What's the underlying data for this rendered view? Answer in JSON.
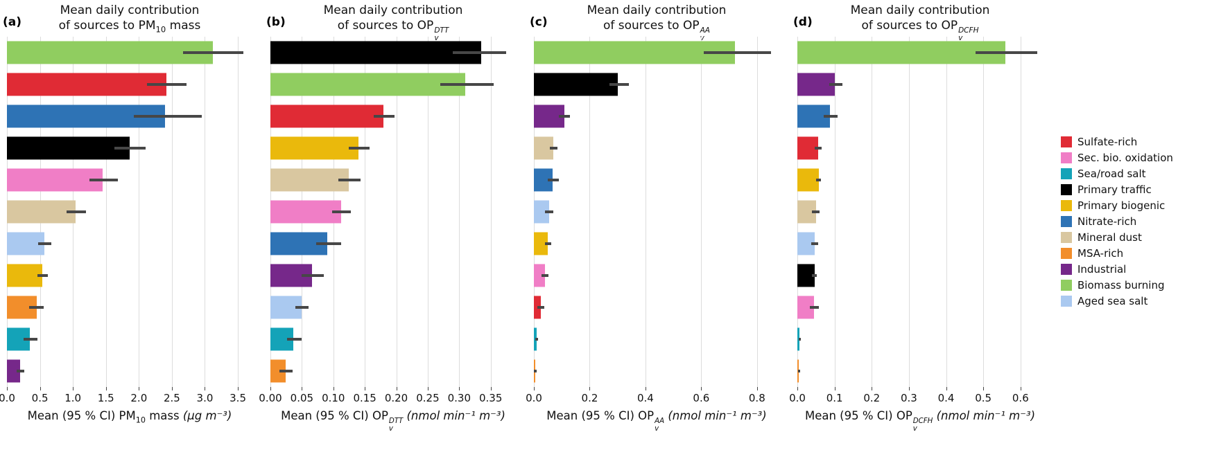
{
  "figure": {
    "background": "#ffffff",
    "error_bar_color": "#474747",
    "gridline_color": "#dcdcdc"
  },
  "legend": {
    "items": [
      {
        "label": "Sulfate-rich",
        "color": "#e02b35"
      },
      {
        "label": "Sec. bio. oxidation",
        "color": "#f07ec6"
      },
      {
        "label": "Sea/road salt",
        "color": "#14a3b8"
      },
      {
        "label": "Primary traffic",
        "color": "#000000"
      },
      {
        "label": "Primary biogenic",
        "color": "#eab90c"
      },
      {
        "label": "Nitrate-rich",
        "color": "#2e73b5"
      },
      {
        "label": "Mineral dust",
        "color": "#d9c7a0"
      },
      {
        "label": "MSA-rich",
        "color": "#f28e2b"
      },
      {
        "label": "Industrial",
        "color": "#76288a"
      },
      {
        "label": "Biomass burning",
        "color": "#90cd60"
      },
      {
        "label": "Aged sea salt",
        "color": "#aac9f0"
      }
    ]
  },
  "chart_data": [
    {
      "id": "a",
      "type": "bar",
      "orientation": "horizontal",
      "panel_label": "(a)",
      "title_line1": "Mean daily contribution",
      "title_line2_prefix": "of sources to ",
      "metric": {
        "base": "PM",
        "sub": "10",
        "sup": "",
        "suffix": " mass"
      },
      "xlabel_prefix": "Mean (95 % CI) ",
      "unit": "μg m⁻³",
      "axis_max": 3.72,
      "ticks": [
        {
          "v": 0.0,
          "label": "0.0"
        },
        {
          "v": 0.5,
          "label": "0.5"
        },
        {
          "v": 1.0,
          "label": "1.0"
        },
        {
          "v": 1.5,
          "label": "1.5"
        },
        {
          "v": 2.0,
          "label": "2.0"
        },
        {
          "v": 2.5,
          "label": "2.5"
        },
        {
          "v": 3.0,
          "label": "3.0"
        },
        {
          "v": 3.5,
          "label": "3.5"
        }
      ],
      "bars": [
        {
          "source": "Biomass burning",
          "value": 3.12,
          "ci": [
            2.67,
            3.58
          ]
        },
        {
          "source": "Sulfate-rich",
          "value": 2.42,
          "ci": [
            2.12,
            2.72
          ]
        },
        {
          "source": "Nitrate-rich",
          "value": 2.4,
          "ci": [
            1.92,
            2.95
          ]
        },
        {
          "source": "Primary traffic",
          "value": 1.86,
          "ci": [
            1.63,
            2.1
          ]
        },
        {
          "source": "Sec. bio. oxidation",
          "value": 1.45,
          "ci": [
            1.25,
            1.68
          ]
        },
        {
          "source": "Mineral dust",
          "value": 1.04,
          "ci": [
            0.9,
            1.2
          ]
        },
        {
          "source": "Aged sea salt",
          "value": 0.57,
          "ci": [
            0.47,
            0.67
          ]
        },
        {
          "source": "Primary biogenic",
          "value": 0.54,
          "ci": [
            0.46,
            0.62
          ]
        },
        {
          "source": "MSA-rich",
          "value": 0.45,
          "ci": [
            0.34,
            0.56
          ]
        },
        {
          "source": "Sea/road salt",
          "value": 0.35,
          "ci": [
            0.25,
            0.46
          ]
        },
        {
          "source": "Industrial",
          "value": 0.2,
          "ci": [
            0.15,
            0.26
          ]
        }
      ]
    },
    {
      "id": "b",
      "type": "bar",
      "orientation": "horizontal",
      "panel_label": "(b)",
      "title_line1": "Mean daily contribution",
      "title_line2_prefix": "of sources to ",
      "metric": {
        "base": "OP",
        "sub": "v",
        "sup": "DTT",
        "suffix": ""
      },
      "xlabel_prefix": "Mean (95 % CI) ",
      "unit": "nmol min⁻¹ m⁻³",
      "axis_max": 0.39,
      "ticks": [
        {
          "v": 0.0,
          "label": "0.00"
        },
        {
          "v": 0.05,
          "label": "0.05"
        },
        {
          "v": 0.1,
          "label": "0.10"
        },
        {
          "v": 0.15,
          "label": "0.15"
        },
        {
          "v": 0.2,
          "label": "0.20"
        },
        {
          "v": 0.25,
          "label": "0.25"
        },
        {
          "v": 0.3,
          "label": "0.30"
        },
        {
          "v": 0.35,
          "label": "0.35"
        }
      ],
      "bars": [
        {
          "source": "Primary traffic",
          "value": 0.335,
          "ci": [
            0.29,
            0.375
          ]
        },
        {
          "source": "Biomass burning",
          "value": 0.31,
          "ci": [
            0.27,
            0.355
          ]
        },
        {
          "source": "Sulfate-rich",
          "value": 0.18,
          "ci": [
            0.164,
            0.197
          ]
        },
        {
          "source": "Primary biogenic",
          "value": 0.14,
          "ci": [
            0.124,
            0.158
          ]
        },
        {
          "source": "Mineral dust",
          "value": 0.125,
          "ci": [
            0.108,
            0.143
          ]
        },
        {
          "source": "Sec. bio. oxidation",
          "value": 0.112,
          "ci": [
            0.098,
            0.128
          ]
        },
        {
          "source": "Nitrate-rich",
          "value": 0.09,
          "ci": [
            0.073,
            0.112
          ]
        },
        {
          "source": "Industrial",
          "value": 0.066,
          "ci": [
            0.05,
            0.085
          ]
        },
        {
          "source": "Aged sea salt",
          "value": 0.05,
          "ci": [
            0.04,
            0.061
          ]
        },
        {
          "source": "Sea/road salt",
          "value": 0.036,
          "ci": [
            0.026,
            0.05
          ]
        },
        {
          "source": "MSA-rich",
          "value": 0.024,
          "ci": [
            0.014,
            0.035
          ]
        }
      ]
    },
    {
      "id": "c",
      "type": "bar",
      "orientation": "horizontal",
      "panel_label": "(c)",
      "title_line1": "Mean daily contribution",
      "title_line2_prefix": "of sources to ",
      "metric": {
        "base": "OP",
        "sub": "v",
        "sup": "AA",
        "suffix": ""
      },
      "xlabel_prefix": "Mean (95 % CI) ",
      "unit": "nmol min⁻¹ m⁻³",
      "axis_max": 0.88,
      "ticks": [
        {
          "v": 0.0,
          "label": "0.0"
        },
        {
          "v": 0.2,
          "label": "0.2"
        },
        {
          "v": 0.4,
          "label": "0.4"
        },
        {
          "v": 0.6,
          "label": "0.6"
        },
        {
          "v": 0.8,
          "label": "0.8"
        }
      ],
      "bars": [
        {
          "source": "Biomass burning",
          "value": 0.72,
          "ci": [
            0.61,
            0.85
          ]
        },
        {
          "source": "Primary traffic",
          "value": 0.3,
          "ci": [
            0.27,
            0.34
          ]
        },
        {
          "source": "Industrial",
          "value": 0.11,
          "ci": [
            0.09,
            0.13
          ]
        },
        {
          "source": "Mineral dust",
          "value": 0.07,
          "ci": [
            0.058,
            0.084
          ]
        },
        {
          "source": "Nitrate-rich",
          "value": 0.068,
          "ci": [
            0.05,
            0.09
          ]
        },
        {
          "source": "Aged sea salt",
          "value": 0.055,
          "ci": [
            0.04,
            0.07
          ]
        },
        {
          "source": "Primary biogenic",
          "value": 0.05,
          "ci": [
            0.04,
            0.062
          ]
        },
        {
          "source": "Sec. bio. oxidation",
          "value": 0.04,
          "ci": [
            0.028,
            0.052
          ]
        },
        {
          "source": "Sulfate-rich",
          "value": 0.025,
          "ci": [
            0.013,
            0.038
          ]
        },
        {
          "source": "Sea/road salt",
          "value": 0.01,
          "ci": [
            0.004,
            0.016
          ]
        },
        {
          "source": "MSA-rich",
          "value": 0.005,
          "ci": [
            0.001,
            0.01
          ]
        }
      ]
    },
    {
      "id": "d",
      "type": "bar",
      "orientation": "horizontal",
      "panel_label": "(d)",
      "title_line1": "Mean daily contribution",
      "title_line2_prefix": "of sources to ",
      "metric": {
        "base": "OP",
        "sub": "v",
        "sup": "DCFH",
        "suffix": ""
      },
      "xlabel_prefix": "Mean (95 % CI) ",
      "unit": "nmol min⁻¹ m⁻³",
      "axis_max": 0.66,
      "ticks": [
        {
          "v": 0.0,
          "label": "0.0"
        },
        {
          "v": 0.1,
          "label": "0.1"
        },
        {
          "v": 0.2,
          "label": "0.2"
        },
        {
          "v": 0.3,
          "label": "0.3"
        },
        {
          "v": 0.4,
          "label": "0.4"
        },
        {
          "v": 0.5,
          "label": "0.5"
        },
        {
          "v": 0.6,
          "label": "0.6"
        }
      ],
      "bars": [
        {
          "source": "Biomass burning",
          "value": 0.56,
          "ci": [
            0.48,
            0.645
          ]
        },
        {
          "source": "Industrial",
          "value": 0.1,
          "ci": [
            0.085,
            0.122
          ]
        },
        {
          "source": "Nitrate-rich",
          "value": 0.088,
          "ci": [
            0.07,
            0.108
          ]
        },
        {
          "source": "Sulfate-rich",
          "value": 0.056,
          "ci": [
            0.046,
            0.066
          ]
        },
        {
          "source": "Primary biogenic",
          "value": 0.057,
          "ci": [
            0.05,
            0.064
          ]
        },
        {
          "source": "Mineral dust",
          "value": 0.05,
          "ci": [
            0.04,
            0.06
          ]
        },
        {
          "source": "Aged sea salt",
          "value": 0.046,
          "ci": [
            0.037,
            0.056
          ]
        },
        {
          "source": "Primary traffic",
          "value": 0.046,
          "ci": [
            0.04,
            0.052
          ]
        },
        {
          "source": "Sec. bio. oxidation",
          "value": 0.045,
          "ci": [
            0.034,
            0.057
          ]
        },
        {
          "source": "Sea/road salt",
          "value": 0.006,
          "ci": [
            0.003,
            0.01
          ]
        },
        {
          "source": "MSA-rich",
          "value": 0.004,
          "ci": [
            0.001,
            0.008
          ]
        }
      ]
    }
  ]
}
